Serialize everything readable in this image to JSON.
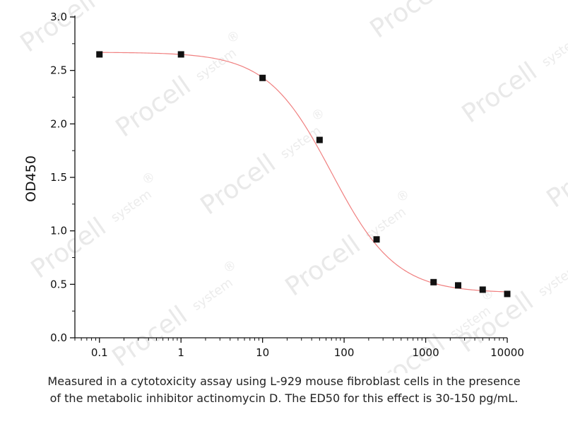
{
  "watermark": {
    "brand": "Procell",
    "suffix": "system",
    "mark": "®"
  },
  "chart_data": {
    "type": "scatter",
    "title": "",
    "xlabel": "",
    "ylabel": "OD450",
    "xscale": "log",
    "xlim": [
      0.05,
      10000
    ],
    "ylim": [
      0,
      3.0
    ],
    "xticks": [
      0.1,
      1,
      10,
      100,
      1000,
      10000
    ],
    "xtick_labels": [
      "0.1",
      "1",
      "10",
      "100",
      "1000",
      "10000"
    ],
    "yticks": [
      0,
      0.5,
      1.0,
      1.5,
      2.0,
      2.5,
      3.0
    ],
    "ytick_labels": [
      "0.0",
      "0.5",
      "1.0",
      "1.5",
      "2.0",
      "2.5",
      "3.0"
    ],
    "grid": false,
    "legend": "none",
    "series": [
      {
        "marker": "square",
        "color": "#111111",
        "x": [
          0.1,
          1,
          10,
          50,
          250,
          1250,
          2500,
          5000,
          10000
        ],
        "y": [
          2.65,
          2.65,
          2.43,
          1.85,
          0.92,
          0.52,
          0.49,
          0.45,
          0.41
        ]
      }
    ],
    "fit_curve": {
      "model": "4PL",
      "color": "#f08080",
      "top": 2.67,
      "bottom": 0.42,
      "ec50": 70,
      "hill": 1.1
    }
  },
  "caption": {
    "line1": "Measured in a cytotoxicity assay using L-929 mouse fibroblast cells in the presence",
    "line2": "of the metabolic inhibitor actinomycin D. The ED50 for this effect is 30-150 pg/mL."
  }
}
